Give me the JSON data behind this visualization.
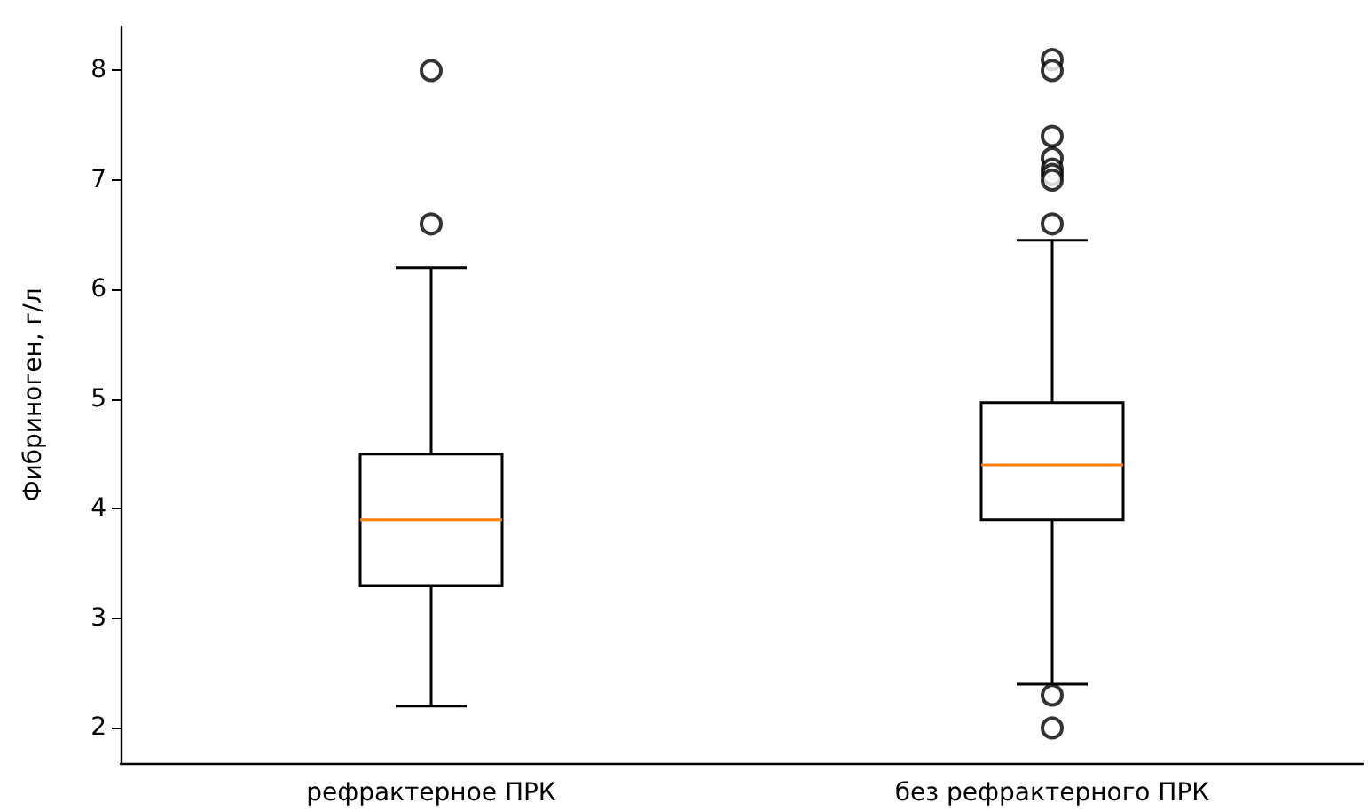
{
  "chart_data": {
    "type": "box",
    "ylabel": "Фибриноген, г/л",
    "categories": [
      "рефрактерное ПРК",
      "без рефрактерного ПРК"
    ],
    "boxes": [
      {
        "low": 2.2,
        "q1": 3.3,
        "median": 3.9,
        "q3": 4.5,
        "high": 6.2,
        "outliers": [
          8.0,
          6.6
        ]
      },
      {
        "low": 2.4,
        "q1": 3.9,
        "median": 4.4,
        "q3": 4.97,
        "high": 6.45,
        "outliers": [
          8.1,
          8.0,
          7.4,
          7.2,
          7.1,
          7.05,
          7.0,
          6.6,
          2.3,
          2.0
        ]
      }
    ],
    "ylim": [
      1.68,
      8.4
    ],
    "yticks": [
      2,
      3,
      4,
      5,
      6,
      7,
      8
    ],
    "grid": false,
    "marker": "circle"
  }
}
